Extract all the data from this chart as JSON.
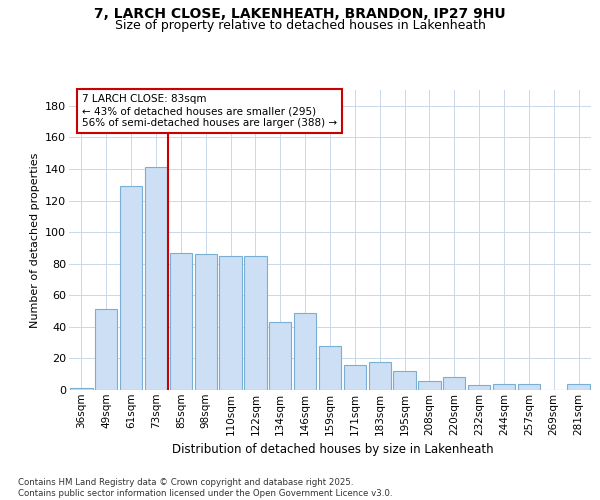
{
  "title_line1": "7, LARCH CLOSE, LAKENHEATH, BRANDON, IP27 9HU",
  "title_line2": "Size of property relative to detached houses in Lakenheath",
  "xlabel": "Distribution of detached houses by size in Lakenheath",
  "ylabel": "Number of detached properties",
  "categories": [
    "36sqm",
    "49sqm",
    "61sqm",
    "73sqm",
    "85sqm",
    "98sqm",
    "110sqm",
    "122sqm",
    "134sqm",
    "146sqm",
    "159sqm",
    "171sqm",
    "183sqm",
    "195sqm",
    "208sqm",
    "220sqm",
    "232sqm",
    "244sqm",
    "257sqm",
    "269sqm",
    "281sqm"
  ],
  "values": [
    1,
    51,
    129,
    141,
    87,
    86,
    85,
    85,
    43,
    49,
    28,
    16,
    18,
    12,
    6,
    8,
    3,
    4,
    4,
    0,
    4
  ],
  "bar_color": "#ccdff5",
  "bar_edge_color": "#7aafd4",
  "vline_position": 3.5,
  "annotation_line1": "7 LARCH CLOSE: 83sqm",
  "annotation_line2": "← 43% of detached houses are smaller (295)",
  "annotation_line3": "56% of semi-detached houses are larger (388) →",
  "vline_color": "#cc0000",
  "grid_color": "#c8d8ea",
  "ylim": [
    0,
    190
  ],
  "yticks": [
    0,
    20,
    40,
    60,
    80,
    100,
    120,
    140,
    160,
    180
  ],
  "footnote1": "Contains HM Land Registry data © Crown copyright and database right 2025.",
  "footnote2": "Contains public sector information licensed under the Open Government Licence v3.0.",
  "bg_color": "#ffffff",
  "fig_bg_color": "#ffffff"
}
